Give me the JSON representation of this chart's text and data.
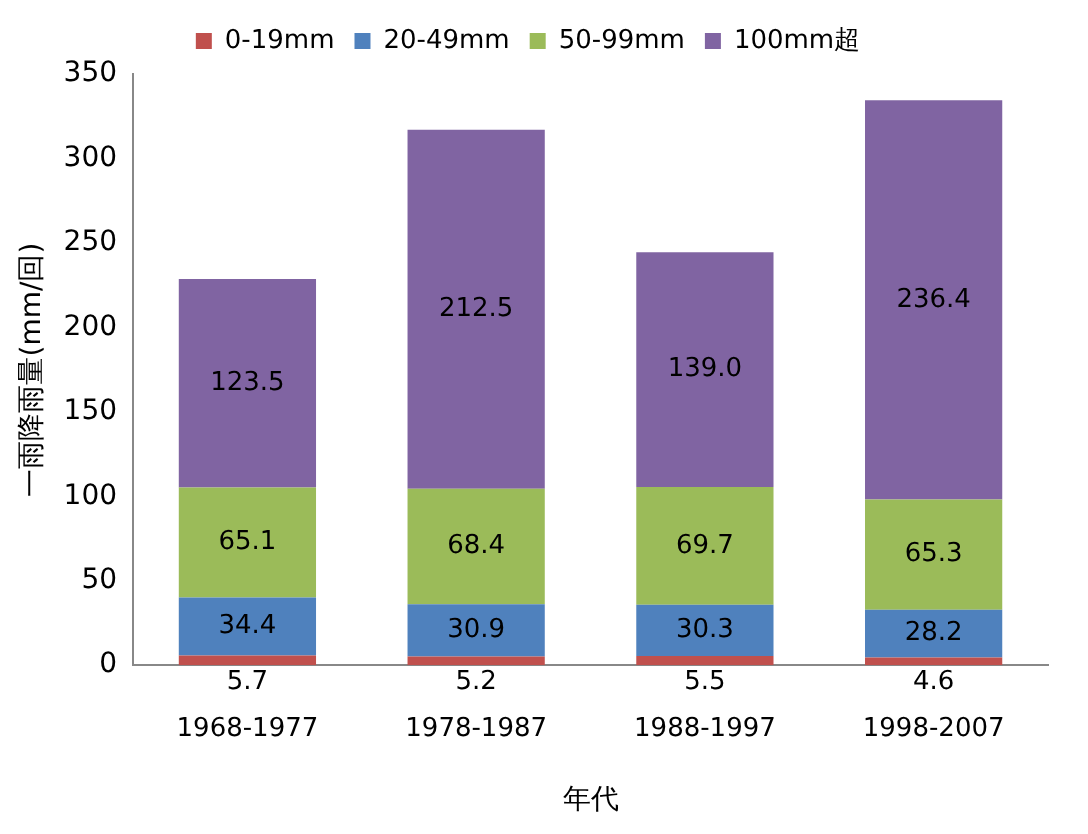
{
  "chart_data": {
    "type": "bar",
    "stacked": true,
    "xlabel": "年代",
    "ylabel": "一雨降雨量(mm/回)",
    "categories": [
      "1968-1977",
      "1978-1987",
      "1988-1997",
      "1998-2007"
    ],
    "ylim": [
      0,
      350
    ],
    "yticks": [
      0,
      50,
      100,
      150,
      200,
      250,
      300,
      350
    ],
    "grid": false,
    "legend": "top",
    "series": [
      {
        "name": "0-19mm",
        "color": "#c0504d",
        "values": [
          5.7,
          5.2,
          5.5,
          4.6
        ],
        "value_labels": [
          "5.7",
          "5.2",
          "5.5",
          "4.6"
        ]
      },
      {
        "name": "20-49mm",
        "color": "#4f81bd",
        "values": [
          34.4,
          30.9,
          30.3,
          28.2
        ],
        "value_labels": [
          "34.4",
          "30.9",
          "30.3",
          "28.2"
        ]
      },
      {
        "name": "50-99mm",
        "color": "#9bbb59",
        "values": [
          65.1,
          68.4,
          69.7,
          65.3
        ],
        "value_labels": [
          "65.1",
          "68.4",
          "69.7",
          "65.3"
        ]
      },
      {
        "name": "100mm超",
        "color": "#8064a2",
        "values": [
          123.5,
          212.5,
          139.0,
          236.4
        ],
        "value_labels": [
          "123.5",
          "212.5",
          "139.0",
          "236.4"
        ]
      }
    ]
  }
}
